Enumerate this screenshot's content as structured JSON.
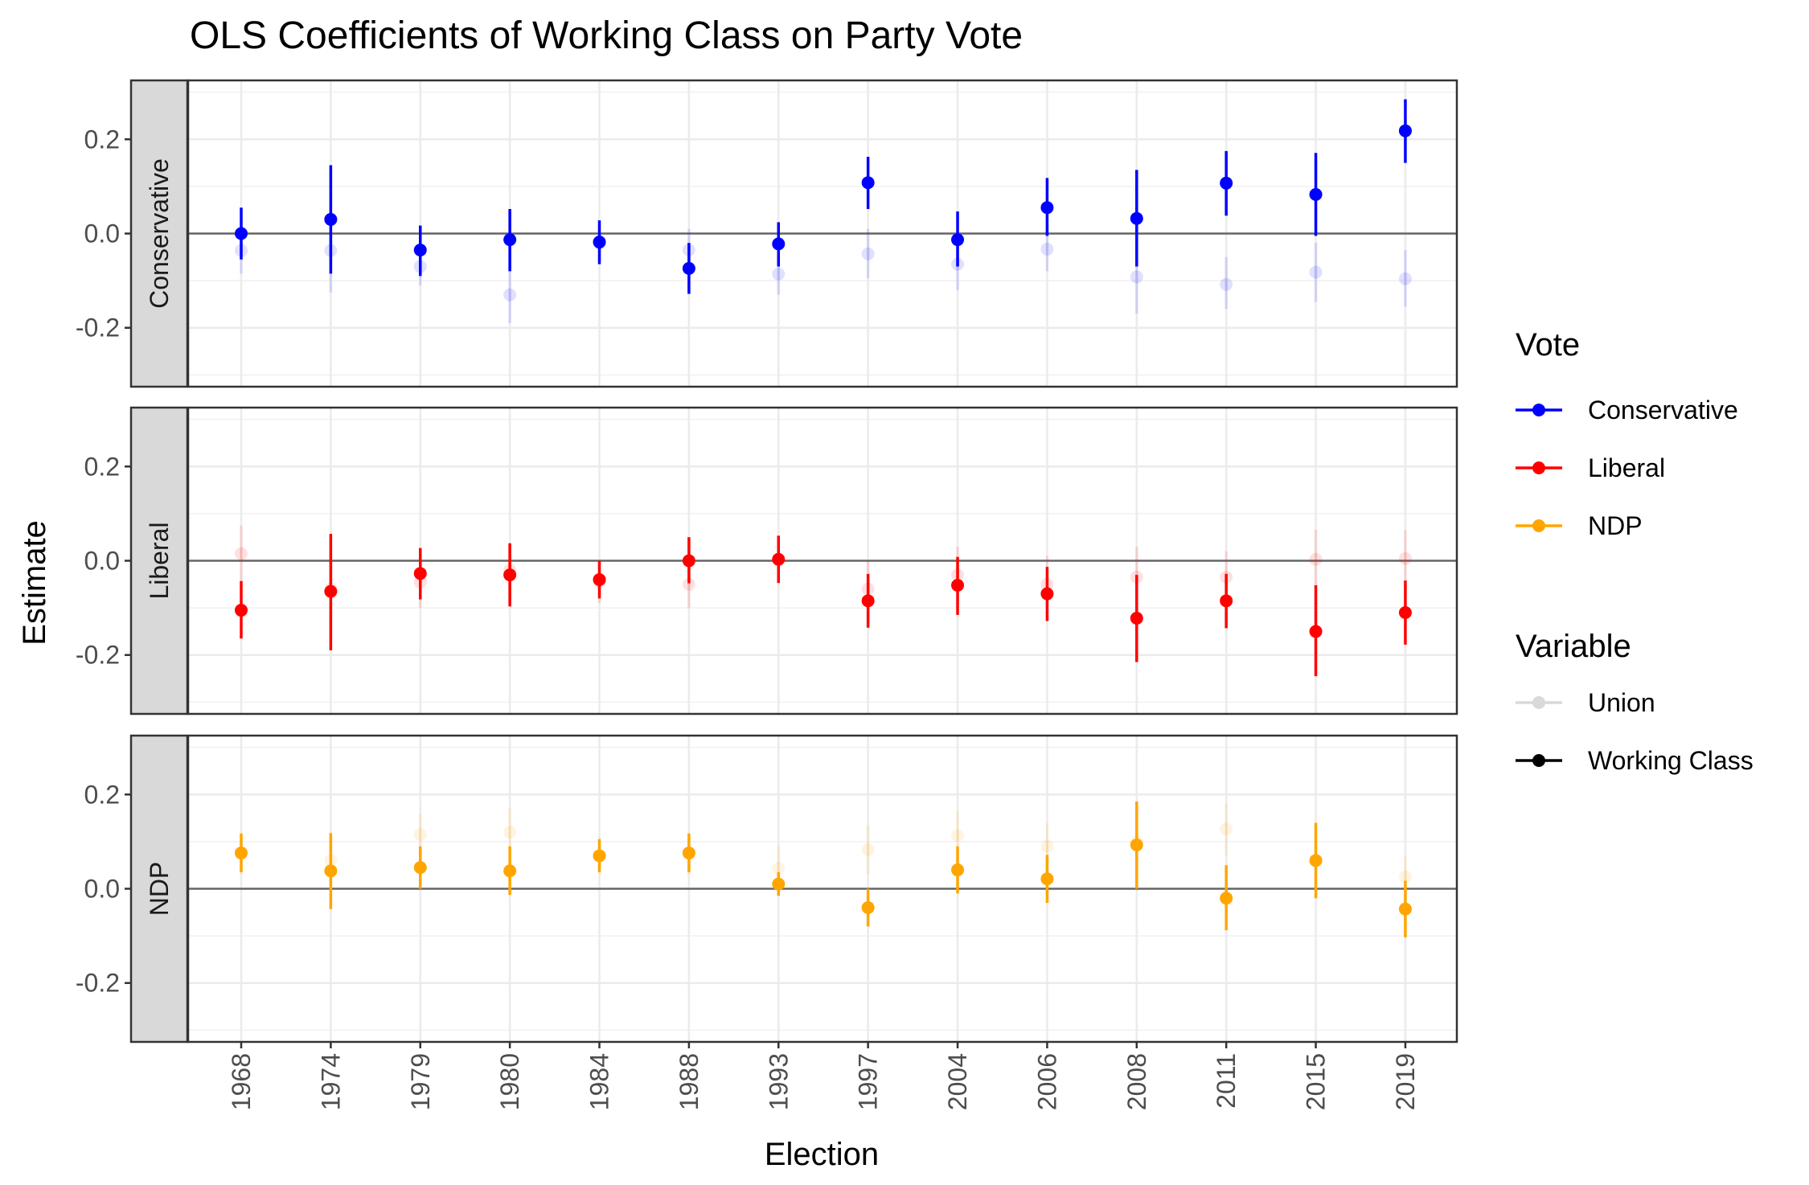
{
  "chart_data": {
    "type": "scatter",
    "subtype": "faceted point-range plot",
    "title": "OLS Coefficients of Working Class on Party Vote",
    "xlabel": "Election",
    "ylabel": "Estimate",
    "categories": [
      "1968",
      "1974",
      "1979",
      "1980",
      "1984",
      "1988",
      "1993",
      "1997",
      "2004",
      "2006",
      "2008",
      "2011",
      "2015",
      "2019"
    ],
    "ylim": [
      -0.325,
      0.325
    ],
    "y_ticks": [
      -0.2,
      0.0,
      0.2
    ],
    "y_tick_labels": [
      "-0.2",
      "0.0",
      "0.2"
    ],
    "reference_line": 0,
    "grid": true,
    "legend_position": "right",
    "legends": [
      {
        "title": "Vote",
        "entries": [
          {
            "label": "Conservative",
            "color": "#0000ff"
          },
          {
            "label": "Liberal",
            "color": "#ff0000"
          },
          {
            "label": "NDP",
            "color": "#ffa500"
          }
        ]
      },
      {
        "title": "Variable",
        "entries": [
          {
            "label": "Union",
            "color": "#d9d9d9"
          },
          {
            "label": "Working Class",
            "color": "#000000"
          }
        ]
      }
    ],
    "variable_opacity": {
      "Union": 0.12,
      "Working Class": 1.0
    },
    "facets": [
      {
        "name": "Conservative",
        "color": "#0000ff",
        "series": [
          {
            "name": "Union",
            "values": [
              -0.036,
              -0.036,
              -0.07,
              -0.13,
              -0.02,
              -0.035,
              -0.086,
              -0.043,
              -0.065,
              -0.033,
              -0.092,
              -0.108,
              -0.082,
              -0.096
            ],
            "lower": [
              -0.085,
              -0.125,
              -0.11,
              -0.19,
              -0.06,
              -0.08,
              -0.13,
              -0.095,
              -0.12,
              -0.08,
              -0.17,
              -0.16,
              -0.145,
              -0.155
            ],
            "upper": [
              0.01,
              0.05,
              -0.02,
              -0.07,
              0.02,
              0.01,
              -0.04,
              0.01,
              -0.01,
              0.015,
              -0.01,
              -0.05,
              -0.02,
              -0.035
            ]
          },
          {
            "name": "Working Class",
            "values": [
              0.0,
              0.03,
              -0.035,
              -0.013,
              -0.018,
              -0.074,
              -0.022,
              0.108,
              -0.013,
              0.055,
              0.032,
              0.107,
              0.083,
              0.218
            ],
            "lower": [
              -0.055,
              -0.085,
              -0.09,
              -0.08,
              -0.065,
              -0.128,
              -0.07,
              0.052,
              -0.07,
              -0.005,
              -0.07,
              0.038,
              -0.005,
              0.15
            ],
            "upper": [
              0.055,
              0.145,
              0.017,
              0.052,
              0.028,
              -0.02,
              0.024,
              0.163,
              0.047,
              0.118,
              0.135,
              0.175,
              0.171,
              0.285
            ]
          }
        ]
      },
      {
        "name": "Liberal",
        "color": "#ff0000",
        "series": [
          {
            "name": "Union",
            "values": [
              0.015,
              -0.06,
              -0.045,
              -0.02,
              -0.045,
              -0.05,
              0.003,
              -0.06,
              -0.03,
              -0.05,
              -0.035,
              -0.035,
              0.003,
              0.005
            ],
            "lower": [
              -0.045,
              -0.12,
              -0.1,
              -0.07,
              -0.09,
              -0.1,
              -0.05,
              -0.12,
              -0.09,
              -0.11,
              -0.1,
              -0.09,
              -0.06,
              -0.055
            ],
            "upper": [
              0.075,
              0.0,
              0.01,
              0.03,
              0.0,
              0.0,
              0.055,
              0.0,
              0.03,
              0.01,
              0.03,
              0.02,
              0.066,
              0.065
            ]
          },
          {
            "name": "Working Class",
            "values": [
              -0.105,
              -0.065,
              -0.027,
              -0.03,
              -0.04,
              0.0,
              0.003,
              -0.085,
              -0.052,
              -0.07,
              -0.122,
              -0.085,
              -0.15,
              -0.11
            ],
            "lower": [
              -0.165,
              -0.19,
              -0.082,
              -0.097,
              -0.08,
              -0.048,
              -0.047,
              -0.142,
              -0.115,
              -0.128,
              -0.215,
              -0.143,
              -0.245,
              -0.178
            ],
            "upper": [
              -0.043,
              0.057,
              0.027,
              0.037,
              0.0,
              0.05,
              0.053,
              -0.028,
              0.008,
              -0.013,
              -0.03,
              -0.028,
              -0.052,
              -0.042
            ]
          }
        ]
      },
      {
        "name": "NDP",
        "color": "#ffa500",
        "series": [
          {
            "name": "Union",
            "values": [
              0.075,
              0.06,
              0.115,
              0.12,
              0.07,
              0.075,
              0.043,
              0.083,
              0.113,
              0.09,
              0.1,
              0.127,
              0.06,
              0.025
            ],
            "lower": [
              0.03,
              0.0,
              0.07,
              0.07,
              0.03,
              0.03,
              0.0,
              0.03,
              0.06,
              0.04,
              0.03,
              0.07,
              0.0,
              -0.02
            ],
            "upper": [
              0.12,
              0.12,
              0.16,
              0.17,
              0.11,
              0.12,
              0.09,
              0.135,
              0.165,
              0.14,
              0.17,
              0.18,
              0.12,
              0.07
            ]
          },
          {
            "name": "Working Class",
            "values": [
              0.076,
              0.038,
              0.045,
              0.038,
              0.07,
              0.076,
              0.01,
              -0.04,
              0.04,
              0.021,
              0.093,
              -0.02,
              0.06,
              -0.043
            ],
            "lower": [
              0.035,
              -0.043,
              0.0,
              -0.013,
              0.035,
              0.035,
              -0.015,
              -0.08,
              -0.01,
              -0.03,
              0.0,
              -0.088,
              -0.02,
              -0.103
            ],
            "upper": [
              0.117,
              0.118,
              0.09,
              0.09,
              0.105,
              0.117,
              0.035,
              0.0,
              0.09,
              0.072,
              0.185,
              0.05,
              0.14,
              0.017
            ]
          }
        ]
      }
    ]
  }
}
